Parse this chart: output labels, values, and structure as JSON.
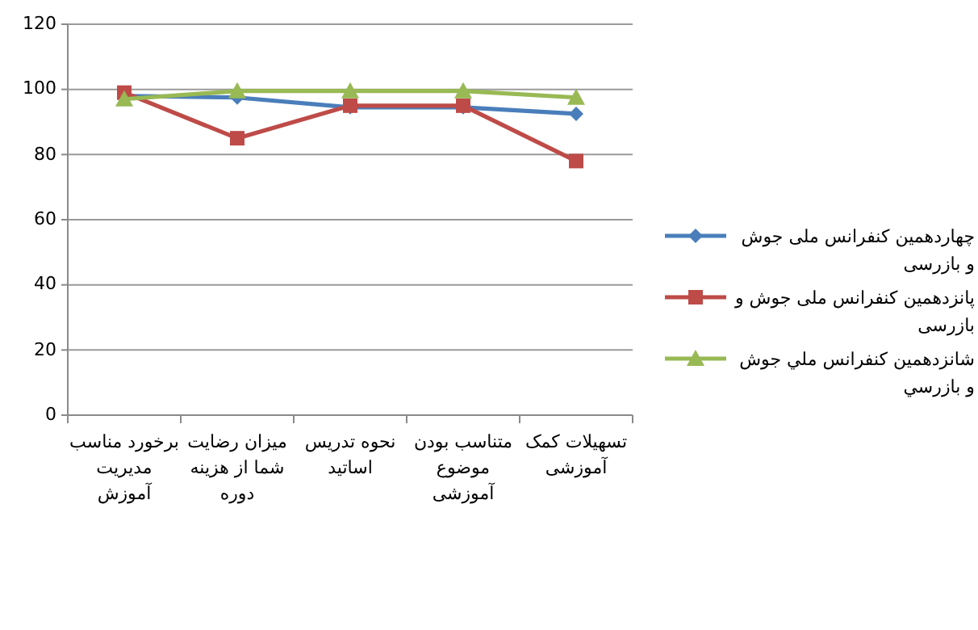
{
  "chart_data": {
    "type": "line",
    "categories": [
      "برخورد مناسب مدیریت آموزش",
      "میزان رضایت شما از هزینه دوره",
      "نحوه تدریس اساتید",
      "متناسب بودن موضوع آموزشی",
      "تسهیلات کمک آموزشی"
    ],
    "series": [
      {
        "name": "چهاردهمین کنفرانس ملی جوش و بازرسی",
        "color": "#4a7ebb",
        "marker": "diamond",
        "values": [
          98,
          97.5,
          94.5,
          94.5,
          92.5
        ]
      },
      {
        "name": "پانزدهمین کنفرانس ملی جوش و بازرسی",
        "color": "#be4b48",
        "marker": "square",
        "values": [
          99,
          85,
          95,
          95,
          78
        ]
      },
      {
        "name": "شانزدهمین  کنفرانس ملي جوش و بازرسي",
        "color": "#98b954",
        "marker": "triangle",
        "values": [
          97,
          99.5,
          99.5,
          99.5,
          97.5
        ]
      }
    ],
    "ylim": [
      0,
      120
    ],
    "yticks": [
      0,
      20,
      40,
      60,
      80,
      100,
      120
    ],
    "grid": "y",
    "legend": "right",
    "line_style": "solid"
  }
}
